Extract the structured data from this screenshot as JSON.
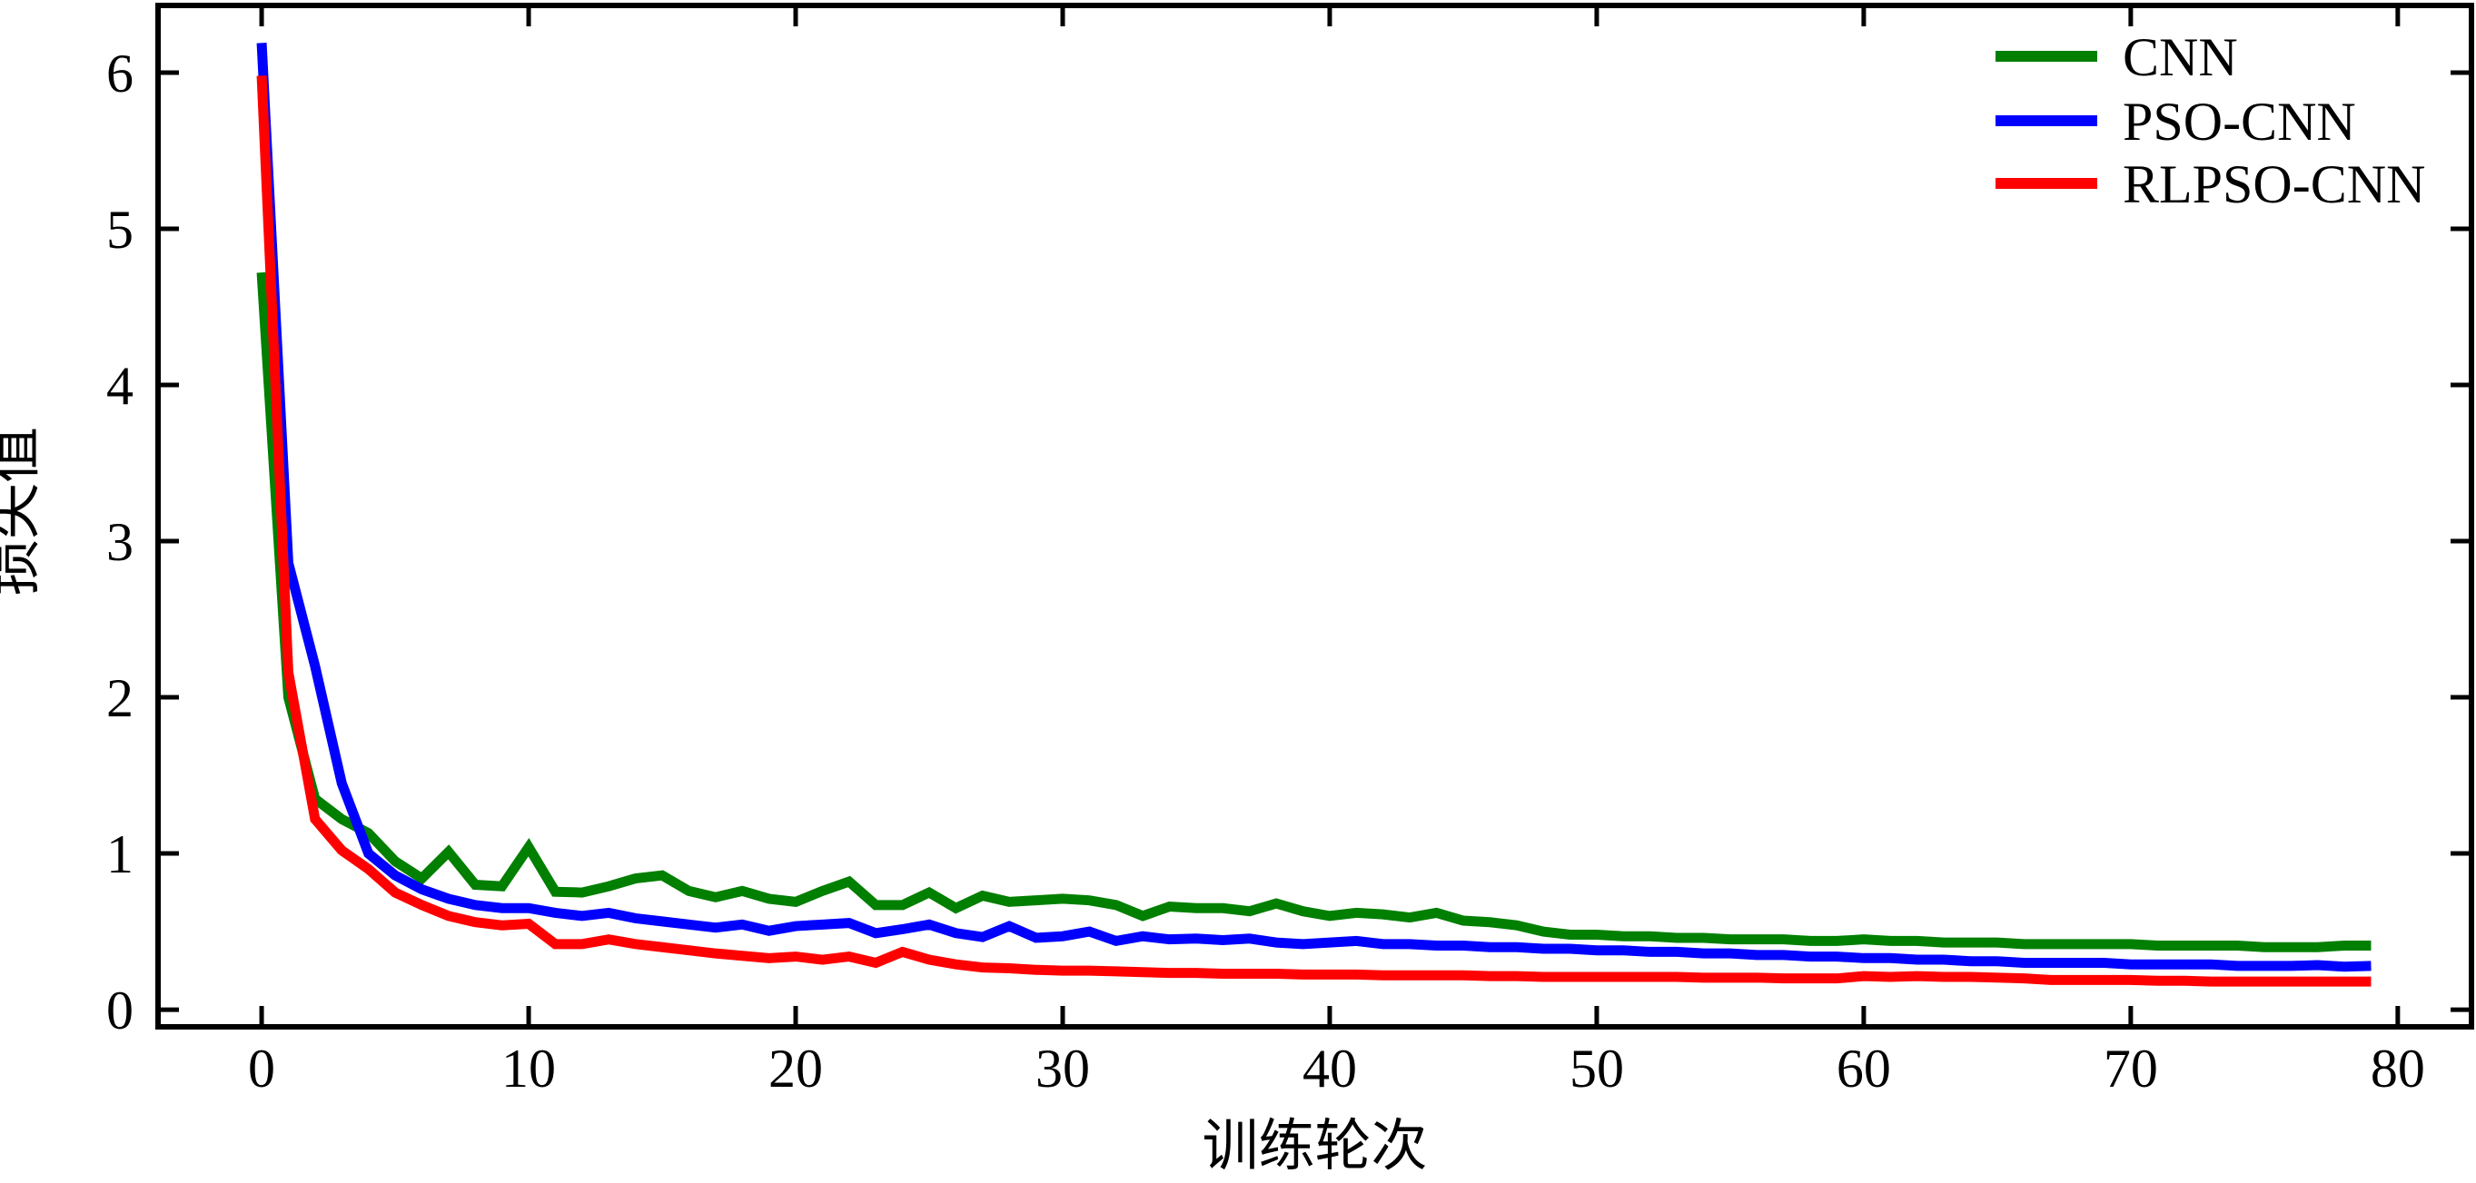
{
  "chart_data": {
    "type": "line",
    "title": "",
    "xlabel": "训练轮次",
    "ylabel": "损失值",
    "xlim": [
      -3.88,
      82.76
    ],
    "ylim": [
      -0.11,
      6.43
    ],
    "xticks": [
      0,
      10,
      20,
      30,
      40,
      50,
      60,
      70,
      80
    ],
    "yticks": [
      0,
      1,
      2,
      3,
      4,
      5,
      6
    ],
    "grid": false,
    "legend_position": "upper right",
    "axis_color": "#000000",
    "epochs": [
      0,
      1,
      2,
      3,
      4,
      5,
      6,
      7,
      8,
      9,
      10,
      11,
      12,
      13,
      14,
      15,
      16,
      17,
      18,
      19,
      20,
      21,
      22,
      23,
      24,
      25,
      26,
      27,
      28,
      29,
      30,
      31,
      32,
      33,
      34,
      35,
      36,
      37,
      38,
      39,
      40,
      41,
      42,
      43,
      44,
      45,
      46,
      47,
      48,
      49,
      50,
      51,
      52,
      53,
      54,
      55,
      56,
      57,
      58,
      59,
      60,
      61,
      62,
      63,
      64,
      65,
      66,
      67,
      68,
      69,
      70,
      71,
      72,
      73,
      74,
      75,
      76,
      77,
      78,
      79
    ],
    "series": [
      {
        "name": "CNN",
        "color": "#007f00",
        "values": [
          4.72,
          2.0,
          1.35,
          1.22,
          1.13,
          0.95,
          0.84,
          1.01,
          0.8,
          0.79,
          1.04,
          0.755,
          0.75,
          0.79,
          0.84,
          0.86,
          0.76,
          0.72,
          0.76,
          0.71,
          0.69,
          0.76,
          0.82,
          0.67,
          0.67,
          0.75,
          0.65,
          0.73,
          0.69,
          0.7,
          0.71,
          0.7,
          0.67,
          0.6,
          0.66,
          0.65,
          0.65,
          0.63,
          0.68,
          0.63,
          0.6,
          0.62,
          0.61,
          0.59,
          0.62,
          0.57,
          0.56,
          0.54,
          0.5,
          0.48,
          0.48,
          0.47,
          0.47,
          0.46,
          0.46,
          0.45,
          0.45,
          0.45,
          0.44,
          0.44,
          0.45,
          0.44,
          0.44,
          0.43,
          0.43,
          0.43,
          0.42,
          0.42,
          0.42,
          0.42,
          0.42,
          0.41,
          0.41,
          0.41,
          0.41,
          0.4,
          0.4,
          0.4,
          0.41,
          0.41
        ]
      },
      {
        "name": "PSO-CNN",
        "color": "#0000ff",
        "values": [
          6.19,
          2.86,
          2.2,
          1.45,
          1.0,
          0.86,
          0.77,
          0.71,
          0.67,
          0.65,
          0.65,
          0.62,
          0.6,
          0.62,
          0.585,
          0.565,
          0.545,
          0.525,
          0.545,
          0.505,
          0.535,
          0.545,
          0.555,
          0.49,
          0.515,
          0.545,
          0.49,
          0.465,
          0.535,
          0.46,
          0.47,
          0.5,
          0.44,
          0.47,
          0.45,
          0.455,
          0.445,
          0.455,
          0.43,
          0.42,
          0.43,
          0.44,
          0.42,
          0.42,
          0.41,
          0.41,
          0.4,
          0.4,
          0.39,
          0.39,
          0.38,
          0.38,
          0.37,
          0.37,
          0.36,
          0.36,
          0.35,
          0.35,
          0.34,
          0.34,
          0.33,
          0.33,
          0.32,
          0.32,
          0.31,
          0.31,
          0.3,
          0.3,
          0.3,
          0.3,
          0.29,
          0.29,
          0.29,
          0.29,
          0.28,
          0.28,
          0.28,
          0.285,
          0.275,
          0.28
        ]
      },
      {
        "name": "RLPSO-CNN",
        "color": "#ff0000",
        "values": [
          5.98,
          2.16,
          1.22,
          1.02,
          0.9,
          0.75,
          0.67,
          0.6,
          0.56,
          0.54,
          0.55,
          0.42,
          0.42,
          0.45,
          0.42,
          0.4,
          0.38,
          0.36,
          0.345,
          0.33,
          0.34,
          0.32,
          0.34,
          0.3,
          0.37,
          0.32,
          0.29,
          0.27,
          0.265,
          0.255,
          0.25,
          0.25,
          0.245,
          0.24,
          0.235,
          0.235,
          0.23,
          0.23,
          0.23,
          0.225,
          0.225,
          0.225,
          0.22,
          0.22,
          0.22,
          0.22,
          0.215,
          0.215,
          0.21,
          0.21,
          0.21,
          0.21,
          0.21,
          0.21,
          0.205,
          0.205,
          0.205,
          0.2,
          0.2,
          0.2,
          0.215,
          0.21,
          0.215,
          0.21,
          0.21,
          0.205,
          0.2,
          0.19,
          0.19,
          0.19,
          0.19,
          0.185,
          0.185,
          0.18,
          0.18,
          0.18,
          0.18,
          0.18,
          0.18,
          0.18
        ]
      }
    ]
  }
}
